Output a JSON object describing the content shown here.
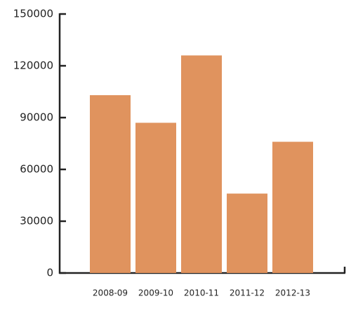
{
  "chart_data": {
    "type": "bar",
    "categories": [
      "2008-09",
      "2009-10",
      "2010-11",
      "2011-12",
      "2012-13"
    ],
    "values": [
      103000,
      87000,
      126000,
      46000,
      76000
    ],
    "color": "#e0935e",
    "ylim": [
      0,
      150000
    ],
    "yticks": [
      0,
      30000,
      60000,
      90000,
      120000,
      150000
    ],
    "grid": false
  }
}
